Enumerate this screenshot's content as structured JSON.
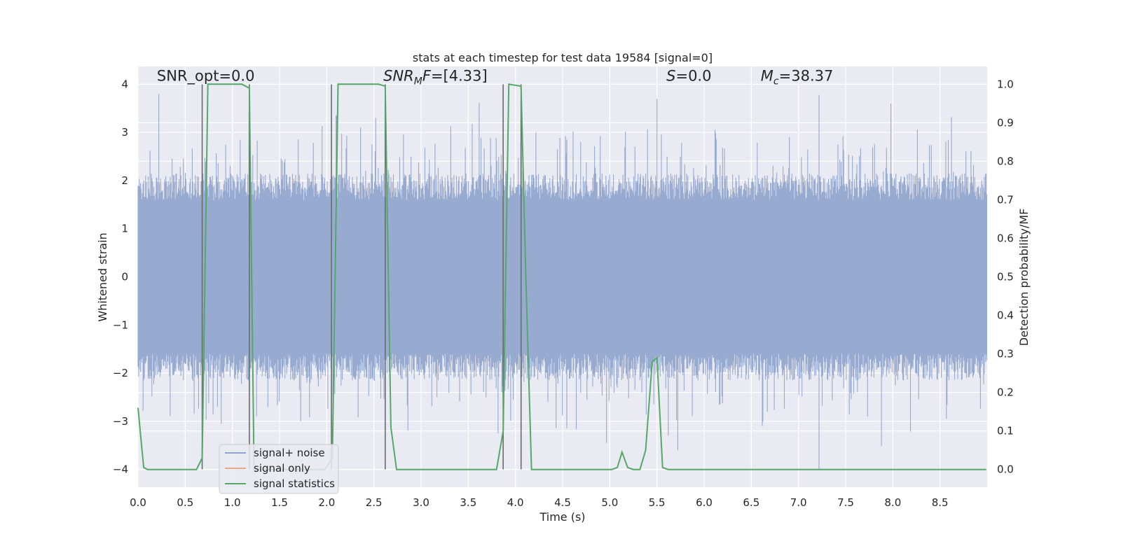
{
  "chart_data": {
    "type": "line",
    "title": "stats at each timestep for test data 19584 [signal=0]",
    "xlabel": "Time (s)",
    "ylabel": "Whitened strain",
    "y2label": "Detection probability/MF",
    "xlim": [
      0.0,
      9.0
    ],
    "ylim": [
      -4.37,
      4.37
    ],
    "y2lim": [
      -0.046,
      1.046
    ],
    "xticks": [
      "0.0",
      "0.5",
      "1.0",
      "1.5",
      "2.0",
      "2.5",
      "3.0",
      "3.5",
      "4.0",
      "4.5",
      "5.0",
      "5.5",
      "6.0",
      "6.5",
      "7.0",
      "7.5",
      "8.0",
      "8.5"
    ],
    "yticks": [
      "4",
      "3",
      "2",
      "1",
      "0",
      "−1",
      "−2",
      "−3",
      "−4"
    ],
    "y2ticks": [
      "1.0",
      "0.9",
      "0.8",
      "0.7",
      "0.6",
      "0.5",
      "0.4",
      "0.3",
      "0.2",
      "0.1",
      "0.0"
    ],
    "grid": true,
    "legend_position": "lower-left",
    "annotations": [
      {
        "text": "SNR_opt=0.0",
        "x": 0.2,
        "y": 4.07
      },
      {
        "text": "SNR_MF=[4.33]",
        "x": 2.6,
        "y": 4.07
      },
      {
        "text": "S=0.0",
        "x": 5.6,
        "y": 4.07
      },
      {
        "text": "M_c=38.37",
        "x": 6.6,
        "y": 4.07
      }
    ],
    "vlines": [
      0.68,
      1.18,
      2.05,
      2.62,
      3.87,
      4.06
    ],
    "noise_envelope": {
      "lower": -1.6,
      "upper": 1.6,
      "peak_max": 3.8,
      "peak_min": -4.0
    },
    "series": [
      {
        "name": "signal+ noise",
        "color": "#8fa4cc",
        "axis": "left",
        "x_range": [
          0.0,
          9.0
        ],
        "spikes": [
          {
            "x": 0.22,
            "y": 3.8
          },
          {
            "x": 1.17,
            "y": 3.42
          },
          {
            "x": 2.1,
            "y": 3.35
          },
          {
            "x": 2.52,
            "y": 3.3
          },
          {
            "x": 3.62,
            "y": 3.62
          },
          {
            "x": 5.5,
            "y": 3.7
          },
          {
            "x": 7.22,
            "y": 3.78
          },
          {
            "x": 7.98,
            "y": 3.6
          },
          {
            "x": 8.62,
            "y": 3.32
          },
          {
            "x": 5.62,
            "y": -3.3
          },
          {
            "x": 5.72,
            "y": -3.6
          },
          {
            "x": 4.97,
            "y": -3.45
          },
          {
            "x": 7.22,
            "y": -4.0
          },
          {
            "x": 7.88,
            "y": -3.52
          },
          {
            "x": 3.82,
            "y": -3.25
          },
          {
            "x": 1.72,
            "y": -3.0
          },
          {
            "x": 0.88,
            "y": -3.05
          },
          {
            "x": 6.62,
            "y": -3.1
          }
        ]
      },
      {
        "name": "signal only",
        "color": "#e8a98b",
        "axis": "left",
        "x": [],
        "y": []
      },
      {
        "name": "signal statistics",
        "color": "#55a868",
        "axis": "right",
        "x": [
          0.0,
          0.06,
          0.1,
          0.62,
          0.68,
          0.74,
          1.1,
          1.18,
          1.23,
          1.98,
          2.06,
          2.12,
          2.55,
          2.62,
          2.68,
          2.74,
          3.8,
          3.87,
          3.93,
          4.06,
          4.11,
          4.17,
          5.02,
          5.08,
          5.13,
          5.19,
          5.25,
          5.32,
          5.38,
          5.45,
          5.5,
          5.56,
          5.62,
          8.99
        ],
        "y": [
          0.16,
          0.005,
          0.0,
          0.0,
          0.03,
          1.0,
          1.0,
          0.99,
          0.0,
          0.0,
          0.03,
          1.0,
          1.0,
          0.995,
          0.11,
          0.0,
          0.0,
          0.1,
          1.0,
          0.995,
          0.5,
          0.0,
          0.0,
          0.005,
          0.045,
          0.005,
          0.0,
          0.0,
          0.05,
          0.28,
          0.29,
          0.005,
          0.0,
          0.0
        ]
      }
    ]
  },
  "legend": {
    "items": [
      "signal+ noise",
      "signal only",
      "signal statistics"
    ]
  }
}
